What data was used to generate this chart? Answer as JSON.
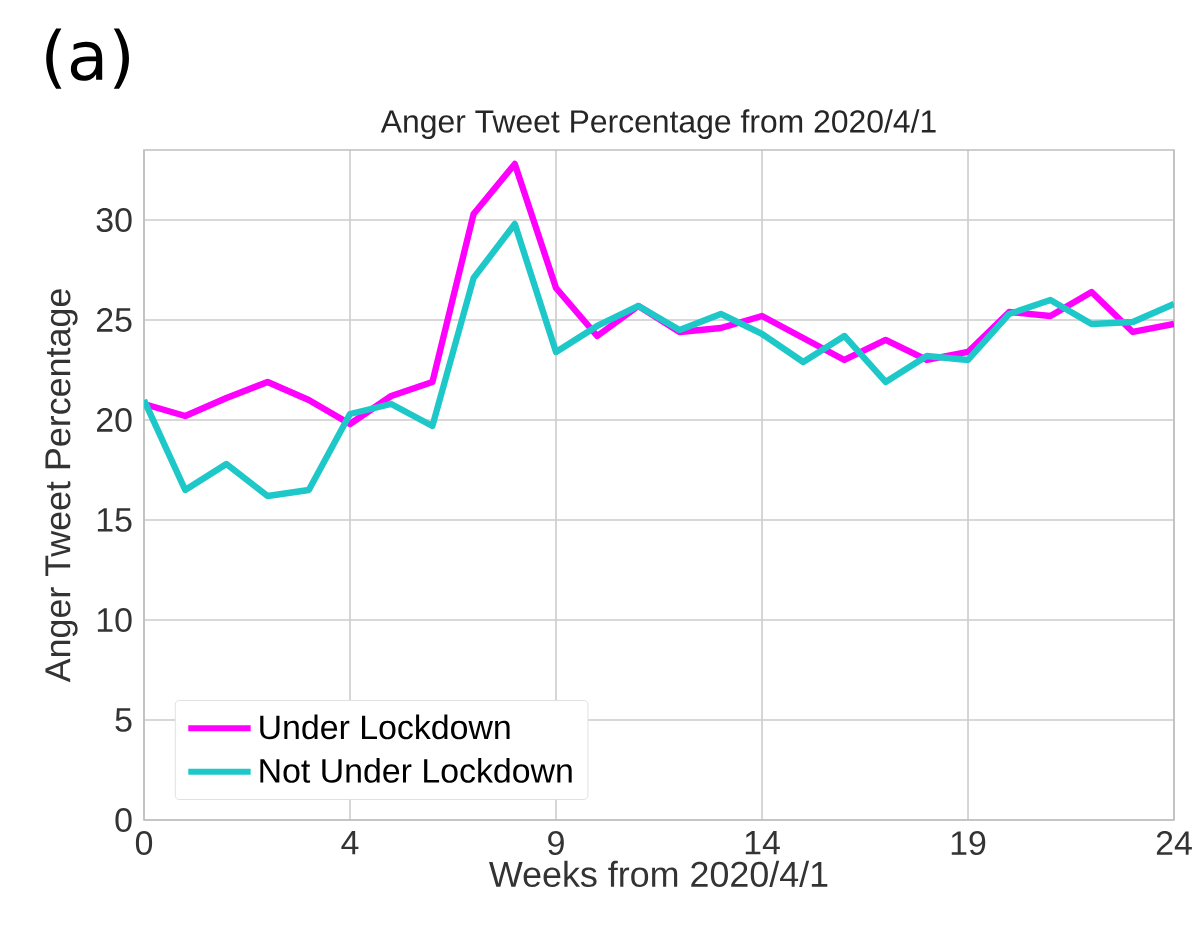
{
  "chart_data": {
    "type": "line",
    "title": "Anger Tweet Percentage from 2020/4/1",
    "xlabel": "Weeks from 2020/4/1",
    "ylabel": "Anger Tweet Percentage",
    "annotations": [
      "(a)"
    ],
    "categories": [
      "0",
      null,
      null,
      null,
      null,
      "4",
      null,
      null,
      null,
      null,
      "9",
      null,
      null,
      null,
      null,
      "14",
      null,
      null,
      null,
      null,
      "19",
      null,
      null,
      null,
      null,
      "24"
    ],
    "series": [
      {
        "name": "Under Lockdown",
        "color": "#ff00ff",
        "values": [
          20.8,
          20.2,
          21.1,
          21.9,
          21.0,
          19.8,
          21.2,
          21.9,
          30.3,
          32.8,
          26.6,
          24.2,
          25.7,
          24.4,
          24.6,
          25.2,
          24.1,
          23.0,
          24.0,
          23.0,
          23.4,
          25.4,
          25.2,
          26.4,
          24.4,
          24.8
        ]
      },
      {
        "name": "Not Under Lockdown",
        "color": "#1fc8c8",
        "values": [
          21.0,
          16.5,
          17.8,
          16.2,
          16.5,
          20.3,
          20.8,
          19.7,
          27.1,
          29.8,
          23.4,
          24.7,
          25.7,
          24.5,
          25.3,
          24.3,
          22.9,
          24.2,
          21.9,
          23.2,
          23.0,
          25.3,
          26.0,
          24.8,
          24.9,
          25.8
        ]
      }
    ],
    "ylim": [
      0,
      33.5
    ],
    "yticks": [
      0,
      5,
      10,
      15,
      20,
      25,
      30
    ],
    "grid": true,
    "legend": "bottom left",
    "marker": "none",
    "line_style": "solid"
  }
}
